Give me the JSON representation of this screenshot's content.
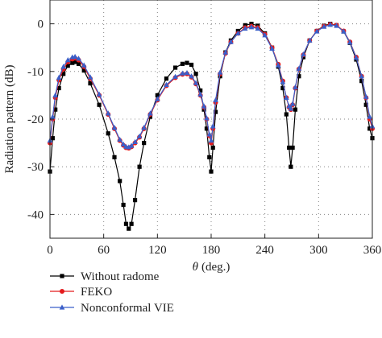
{
  "chart_data": {
    "type": "line",
    "title": "",
    "xlabel_symbol": "θ",
    "xlabel_text": "(deg.)",
    "ylabel": "Radiation pattern (dB)",
    "xlim": [
      0,
      360
    ],
    "ylim": [
      -45,
      5
    ],
    "xticks": [
      0,
      60,
      120,
      180,
      240,
      300,
      360
    ],
    "yticks": [
      0,
      -10,
      -20,
      -30,
      -40
    ],
    "grid": "dotted",
    "legend_position": "below",
    "series": [
      {
        "name": "Without radome",
        "color": "#000000",
        "marker": "square",
        "points": [
          [
            0,
            -31
          ],
          [
            3,
            -24
          ],
          [
            6,
            -18
          ],
          [
            10,
            -13.5
          ],
          [
            15,
            -10.5
          ],
          [
            20,
            -8.8
          ],
          [
            25,
            -8.2
          ],
          [
            28,
            -8
          ],
          [
            32,
            -8.4
          ],
          [
            38,
            -9.8
          ],
          [
            45,
            -12.5
          ],
          [
            55,
            -17
          ],
          [
            65,
            -23
          ],
          [
            72,
            -28
          ],
          [
            78,
            -33
          ],
          [
            82,
            -38
          ],
          [
            85,
            -42
          ],
          [
            88,
            -43
          ],
          [
            91,
            -42
          ],
          [
            95,
            -37
          ],
          [
            100,
            -30
          ],
          [
            105,
            -25
          ],
          [
            112,
            -19.5
          ],
          [
            120,
            -15
          ],
          [
            130,
            -11.5
          ],
          [
            140,
            -9.2
          ],
          [
            148,
            -8.4
          ],
          [
            153,
            -8.2
          ],
          [
            158,
            -8.6
          ],
          [
            163,
            -10.5
          ],
          [
            168,
            -14
          ],
          [
            172,
            -18
          ],
          [
            175,
            -22
          ],
          [
            178,
            -28
          ],
          [
            180,
            -31
          ],
          [
            182,
            -26
          ],
          [
            185,
            -18.5
          ],
          [
            190,
            -11
          ],
          [
            196,
            -6
          ],
          [
            202,
            -3.5
          ],
          [
            210,
            -1.5
          ],
          [
            218,
            -0.3
          ],
          [
            225,
            0
          ],
          [
            232,
            -0.4
          ],
          [
            240,
            -2
          ],
          [
            248,
            -5
          ],
          [
            255,
            -9
          ],
          [
            260,
            -13.5
          ],
          [
            264,
            -19
          ],
          [
            267,
            -26
          ],
          [
            269,
            -30
          ],
          [
            271,
            -26
          ],
          [
            274,
            -18
          ],
          [
            278,
            -11
          ],
          [
            283,
            -7
          ],
          [
            290,
            -3.5
          ],
          [
            298,
            -1.5
          ],
          [
            306,
            -0.4
          ],
          [
            313,
            0
          ],
          [
            320,
            -0.3
          ],
          [
            328,
            -1.6
          ],
          [
            335,
            -4
          ],
          [
            342,
            -7.5
          ],
          [
            348,
            -12
          ],
          [
            353,
            -17
          ],
          [
            357,
            -22
          ],
          [
            360,
            -24
          ]
        ]
      },
      {
        "name": "FEKO",
        "color": "#e41a1c",
        "marker": "circle",
        "points": [
          [
            0,
            -25
          ],
          [
            3,
            -20
          ],
          [
            6,
            -15.5
          ],
          [
            10,
            -11.8
          ],
          [
            15,
            -9.5
          ],
          [
            20,
            -8
          ],
          [
            25,
            -7.4
          ],
          [
            28,
            -7.2
          ],
          [
            32,
            -7.6
          ],
          [
            38,
            -9
          ],
          [
            45,
            -11.5
          ],
          [
            55,
            -15
          ],
          [
            65,
            -19
          ],
          [
            72,
            -22
          ],
          [
            78,
            -24.5
          ],
          [
            82,
            -25.5
          ],
          [
            85,
            -26
          ],
          [
            88,
            -26.1
          ],
          [
            91,
            -25.8
          ],
          [
            95,
            -25
          ],
          [
            100,
            -23.8
          ],
          [
            105,
            -22
          ],
          [
            112,
            -19
          ],
          [
            120,
            -16
          ],
          [
            130,
            -13
          ],
          [
            140,
            -11.3
          ],
          [
            148,
            -10.6
          ],
          [
            153,
            -10.5
          ],
          [
            158,
            -11.2
          ],
          [
            163,
            -12.6
          ],
          [
            168,
            -15
          ],
          [
            172,
            -17.5
          ],
          [
            175,
            -20
          ],
          [
            178,
            -23.5
          ],
          [
            180,
            -25
          ],
          [
            182,
            -22
          ],
          [
            185,
            -16.5
          ],
          [
            190,
            -10.5
          ],
          [
            196,
            -6.2
          ],
          [
            202,
            -3.8
          ],
          [
            210,
            -2
          ],
          [
            218,
            -0.8
          ],
          [
            225,
            -0.5
          ],
          [
            232,
            -0.8
          ],
          [
            240,
            -2.2
          ],
          [
            248,
            -5
          ],
          [
            255,
            -8.5
          ],
          [
            260,
            -12
          ],
          [
            264,
            -15.5
          ],
          [
            267,
            -17.5
          ],
          [
            269,
            -18
          ],
          [
            271,
            -17
          ],
          [
            274,
            -13.5
          ],
          [
            278,
            -9.5
          ],
          [
            283,
            -6.5
          ],
          [
            290,
            -3.5
          ],
          [
            298,
            -1.5
          ],
          [
            306,
            -0.5
          ],
          [
            313,
            -0.1
          ],
          [
            320,
            -0.3
          ],
          [
            328,
            -1.5
          ],
          [
            335,
            -3.8
          ],
          [
            342,
            -7
          ],
          [
            348,
            -11
          ],
          [
            353,
            -15.5
          ],
          [
            357,
            -20
          ],
          [
            360,
            -22
          ]
        ]
      },
      {
        "name": "Nonconformal VIE",
        "color": "#3b5fc9",
        "marker": "triangle",
        "points": [
          [
            0,
            -24.5
          ],
          [
            3,
            -19.5
          ],
          [
            6,
            -15
          ],
          [
            10,
            -11.3
          ],
          [
            15,
            -9
          ],
          [
            20,
            -7.6
          ],
          [
            25,
            -7
          ],
          [
            28,
            -6.9
          ],
          [
            32,
            -7.3
          ],
          [
            38,
            -8.7
          ],
          [
            45,
            -11.2
          ],
          [
            55,
            -14.8
          ],
          [
            65,
            -18.8
          ],
          [
            72,
            -21.8
          ],
          [
            78,
            -24.3
          ],
          [
            82,
            -25.3
          ],
          [
            85,
            -25.8
          ],
          [
            88,
            -25.9
          ],
          [
            91,
            -25.6
          ],
          [
            95,
            -24.8
          ],
          [
            100,
            -23.6
          ],
          [
            105,
            -21.8
          ],
          [
            112,
            -18.8
          ],
          [
            120,
            -15.8
          ],
          [
            130,
            -12.8
          ],
          [
            140,
            -11.1
          ],
          [
            148,
            -10.4
          ],
          [
            153,
            -10.3
          ],
          [
            158,
            -11
          ],
          [
            163,
            -12.4
          ],
          [
            168,
            -14.8
          ],
          [
            172,
            -17.3
          ],
          [
            175,
            -19.8
          ],
          [
            178,
            -23.2
          ],
          [
            180,
            -24.5
          ],
          [
            182,
            -21.5
          ],
          [
            185,
            -16
          ],
          [
            190,
            -10.2
          ],
          [
            196,
            -6
          ],
          [
            202,
            -3.8
          ],
          [
            210,
            -2
          ],
          [
            218,
            -1
          ],
          [
            225,
            -0.7
          ],
          [
            232,
            -1
          ],
          [
            240,
            -2.4
          ],
          [
            248,
            -5.2
          ],
          [
            255,
            -8.7
          ],
          [
            260,
            -12.2
          ],
          [
            264,
            -15.5
          ],
          [
            267,
            -17.3
          ],
          [
            269,
            -17.8
          ],
          [
            271,
            -16.8
          ],
          [
            274,
            -13.3
          ],
          [
            278,
            -9.4
          ],
          [
            283,
            -6.4
          ],
          [
            290,
            -3.5
          ],
          [
            298,
            -1.6
          ],
          [
            306,
            -0.6
          ],
          [
            313,
            -0.2
          ],
          [
            320,
            -0.4
          ],
          [
            328,
            -1.6
          ],
          [
            335,
            -3.9
          ],
          [
            342,
            -7.1
          ],
          [
            348,
            -11
          ],
          [
            353,
            -15.3
          ],
          [
            357,
            -19.5
          ],
          [
            360,
            -21.5
          ]
        ]
      }
    ]
  }
}
